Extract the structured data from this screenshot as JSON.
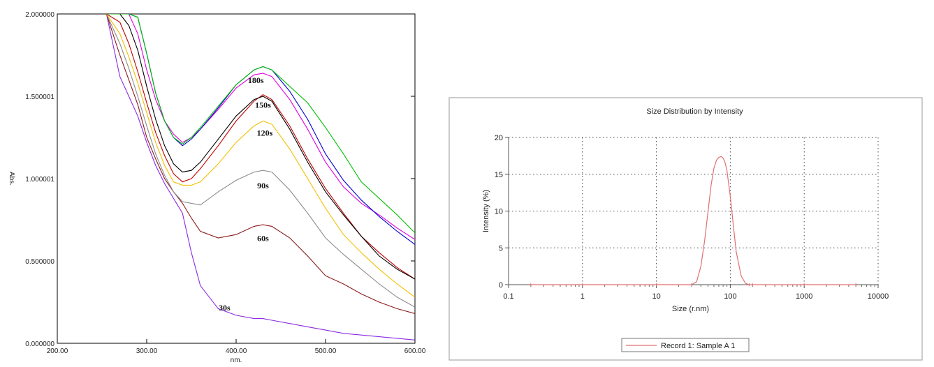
{
  "chart_data": [
    {
      "type": "line",
      "title": "",
      "xlabel": "nm.",
      "ylabel": "Abs.",
      "xlim": [
        200,
        600
      ],
      "ylim": [
        0,
        2
      ],
      "x_ticks": [
        "200.00",
        "300.00",
        "400.00",
        "500.00",
        "600.00"
      ],
      "y_ticks": [
        "0.000000",
        "0.500000",
        "1.000001",
        "1.500001",
        "2.000000"
      ],
      "grid": false,
      "x": [
        255,
        270,
        280,
        290,
        300,
        310,
        320,
        330,
        340,
        350,
        360,
        380,
        400,
        420,
        430,
        440,
        460,
        480,
        500,
        520,
        540,
        560,
        580,
        600
      ],
      "series": [
        {
          "name": "30s",
          "color": "#8a2be2",
          "values": [
            2.0,
            1.62,
            1.5,
            1.38,
            1.22,
            1.08,
            0.97,
            0.88,
            0.79,
            0.55,
            0.35,
            0.21,
            0.17,
            0.15,
            0.15,
            0.14,
            0.12,
            0.1,
            0.08,
            0.06,
            0.05,
            0.04,
            0.03,
            0.02
          ]
        },
        {
          "name": "60s",
          "color": "#8b1a1a",
          "values": [
            2.0,
            1.75,
            1.6,
            1.45,
            1.25,
            1.12,
            1.0,
            0.92,
            0.85,
            0.76,
            0.68,
            0.64,
            0.66,
            0.71,
            0.72,
            0.71,
            0.64,
            0.53,
            0.41,
            0.36,
            0.3,
            0.25,
            0.21,
            0.18
          ]
        },
        {
          "name": "90s",
          "color": "#8c8c8c",
          "values": [
            2.0,
            1.82,
            1.67,
            1.5,
            1.32,
            1.15,
            1.02,
            0.92,
            0.86,
            0.85,
            0.84,
            0.92,
            0.99,
            1.04,
            1.05,
            1.04,
            0.93,
            0.79,
            0.64,
            0.54,
            0.45,
            0.36,
            0.28,
            0.22
          ]
        },
        {
          "name": "120s",
          "color": "#f0c000",
          "values": [
            2.0,
            1.88,
            1.74,
            1.58,
            1.4,
            1.22,
            1.08,
            0.98,
            0.96,
            0.96,
            0.98,
            1.09,
            1.22,
            1.32,
            1.35,
            1.33,
            1.18,
            1.0,
            0.82,
            0.66,
            0.55,
            0.45,
            0.36,
            0.28
          ]
        },
        {
          "name": "150s",
          "color": "#c00000",
          "values": [
            2.0,
            1.95,
            1.82,
            1.65,
            1.46,
            1.28,
            1.14,
            1.03,
            0.98,
            1.0,
            1.06,
            1.2,
            1.35,
            1.47,
            1.51,
            1.48,
            1.32,
            1.12,
            0.94,
            0.79,
            0.65,
            0.55,
            0.46,
            0.39
          ]
        },
        {
          "name": "",
          "color": "#000000",
          "values": [
            2.0,
            2.0,
            1.93,
            1.78,
            1.56,
            1.36,
            1.2,
            1.09,
            1.04,
            1.05,
            1.1,
            1.24,
            1.38,
            1.48,
            1.5,
            1.47,
            1.3,
            1.1,
            0.92,
            0.78,
            0.65,
            0.53,
            0.45,
            0.39
          ]
        },
        {
          "name": "180s",
          "color": "#e000e0",
          "values": [
            2.0,
            2.0,
            2.0,
            1.88,
            1.66,
            1.48,
            1.35,
            1.27,
            1.22,
            1.25,
            1.3,
            1.42,
            1.55,
            1.63,
            1.64,
            1.62,
            1.48,
            1.3,
            1.1,
            0.95,
            0.85,
            0.78,
            0.7,
            0.63
          ]
        },
        {
          "name": "",
          "color": "#0000d0",
          "values": [
            2.0,
            2.0,
            2.0,
            1.98,
            1.76,
            1.52,
            1.35,
            1.25,
            1.2,
            1.24,
            1.3,
            1.43,
            1.57,
            1.66,
            1.68,
            1.66,
            1.53,
            1.36,
            1.15,
            0.99,
            0.87,
            0.77,
            0.68,
            0.6
          ]
        },
        {
          "name": "",
          "color": "#00c000",
          "values": [
            2.0,
            2.0,
            2.0,
            1.98,
            1.76,
            1.52,
            1.35,
            1.25,
            1.21,
            1.25,
            1.31,
            1.44,
            1.57,
            1.66,
            1.68,
            1.66,
            1.56,
            1.46,
            1.31,
            1.15,
            0.98,
            0.88,
            0.78,
            0.67
          ]
        }
      ],
      "labels": [
        {
          "text": "180s",
          "x": 422,
          "y": 1.58
        },
        {
          "text": "150s",
          "x": 430,
          "y": 1.43
        },
        {
          "text": "120s",
          "x": 432,
          "y": 1.26
        },
        {
          "text": "90s",
          "x": 430,
          "y": 0.94
        },
        {
          "text": "60s",
          "x": 430,
          "y": 0.62
        },
        {
          "text": "30s",
          "x": 387,
          "y": 0.2
        }
      ]
    },
    {
      "type": "line",
      "title": "Size Distribution by Intensity",
      "xlabel": "Size (r.nm)",
      "ylabel": "Intensity (%)",
      "xscale": "log",
      "xlim": [
        0.1,
        10000
      ],
      "ylim": [
        0,
        20
      ],
      "x_ticks": [
        "0.1",
        "1",
        "10",
        "100",
        "1000",
        "10000"
      ],
      "y_ticks": [
        "0",
        "5",
        "10",
        "15",
        "20"
      ],
      "grid": true,
      "legend_position": "bottom",
      "series": [
        {
          "name": "Record 1: Sample A 1",
          "color": "#e07070",
          "x": [
            0.2,
            1,
            10,
            30,
            35,
            40,
            45,
            50,
            55,
            60,
            65,
            70,
            75,
            80,
            85,
            90,
            100,
            110,
            120,
            140,
            160,
            180,
            200,
            1000,
            5000
          ],
          "values": [
            0,
            0,
            0,
            0,
            0.4,
            2.5,
            6.0,
            10.0,
            13.5,
            15.8,
            16.9,
            17.3,
            17.4,
            17.2,
            16.6,
            15.5,
            12.0,
            8.0,
            4.5,
            1.2,
            0.2,
            0,
            0,
            0,
            0
          ]
        }
      ]
    }
  ]
}
